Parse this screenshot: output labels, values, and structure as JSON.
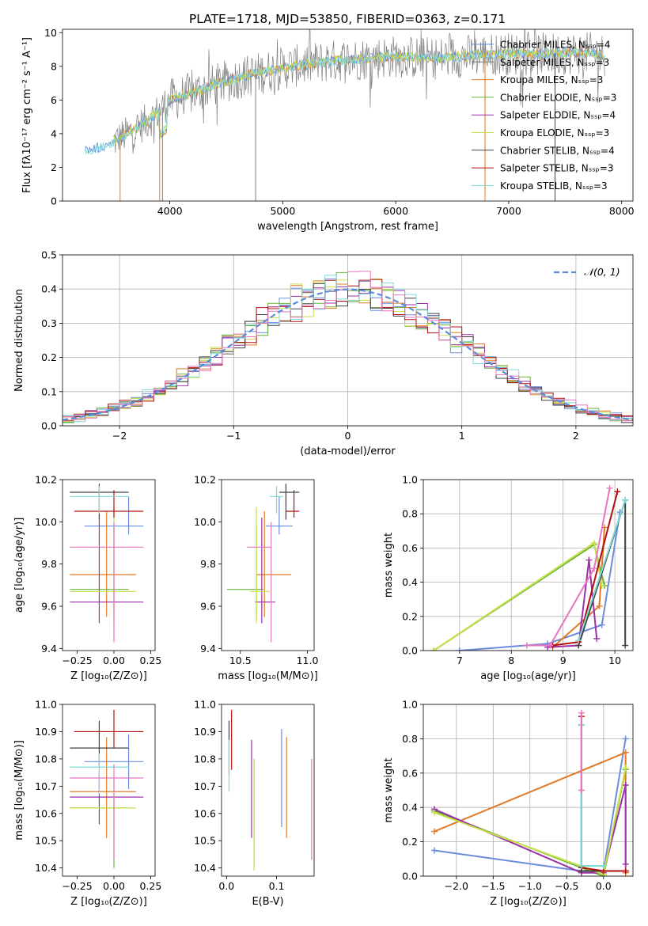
{
  "figure": {
    "title": "PLATE=1718, MJD=53850, FIBERID=0363, z=0.171"
  },
  "colors": {
    "Chabrier MILES": "#6a8ddc",
    "Salpeter MILES": "#ff8c1a",
    "Kroupa MILES": "#e07a28",
    "Chabrier ELODIE": "#68b23b",
    "Salpeter ELODIE": "#9b30a8",
    "Kroupa ELODIE": "#c8e04a",
    "Chabrier STELIB": "#404040",
    "Salpeter STELIB": "#b01010",
    "Kroupa STELIB": "#80d8d8",
    "Chabrier MILES spectrum": "#6a8ddc",
    "Salpeter MILES spectrum": "#e07a28",
    "Kroupa MILES spectrum": "#e07a28",
    "Salpeter MILES spec": "#888888",
    "data": "#808080",
    "pink": "#e874c0",
    "normal": "#5b8bdb"
  },
  "chart_data": [
    {
      "id": "spectrum",
      "type": "line",
      "title": "PLATE=1718, MJD=53850, FIBERID=0363, z=0.171",
      "xlabel": "wavelength [Angstrom, rest frame]",
      "ylabel": "Flux [fλ10⁻¹⁷ erg cm⁻² s⁻¹ A⁻¹]",
      "xlim": [
        3050,
        8100
      ],
      "ylim": [
        0,
        10.2
      ],
      "xticks": [
        4000,
        5000,
        6000,
        7000,
        8000
      ],
      "yticks": [
        0,
        2,
        4,
        6,
        8,
        10
      ],
      "legend_position": "top-right",
      "legend": [
        {
          "label": "Chabrier MILES, Nₛₛₚ=4",
          "color": "#6a8ddc"
        },
        {
          "label": "Salpeter MILES, Nₛₛₚ=3",
          "color": "#808080"
        },
        {
          "label": "Kroupa MILES, Nₛₛₚ=3",
          "color": "#e07a28"
        },
        {
          "label": "Chabrier ELODIE, Nₛₛₚ=3",
          "color": "#68b23b"
        },
        {
          "label": "Salpeter ELODIE, Nₛₛₚ=4",
          "color": "#9b30a8"
        },
        {
          "label": "Kroupa ELODIE, Nₛₛₚ=3",
          "color": "#c8e04a"
        },
        {
          "label": "Chabrier STELIB, Nₛₛₚ=4",
          "color": "#404040"
        },
        {
          "label": "Salpeter STELIB, Nₛₛₚ=3",
          "color": "#b01010"
        },
        {
          "label": "Kroupa STELIB, Nₛₛₚ=3",
          "color": "#80d8d8"
        }
      ],
      "continuum": {
        "x": [
          3250,
          3400,
          3550,
          3700,
          3850,
          4000,
          4200,
          4400,
          4600,
          4800,
          5000,
          5200,
          5400,
          5600,
          5800,
          6000,
          6200,
          6400,
          6600,
          6800,
          7000,
          7200,
          7400,
          7600,
          7850
        ],
        "y": [
          3.0,
          3.2,
          3.7,
          4.3,
          5.0,
          6.0,
          6.4,
          6.9,
          7.3,
          7.6,
          7.9,
          8.1,
          8.3,
          8.4,
          8.5,
          8.6,
          8.5,
          8.5,
          8.6,
          8.7,
          8.75,
          8.7,
          8.75,
          8.8,
          8.7
        ]
      }
    },
    {
      "id": "residuals",
      "type": "histogram",
      "xlabel": "(data-model)/error",
      "ylabel": "Normed distribution",
      "xlim": [
        -2.5,
        2.5
      ],
      "ylim": [
        0,
        0.5
      ],
      "xticks": [
        -2,
        -1,
        0,
        1,
        2
      ],
      "yticks": [
        0.0,
        0.1,
        0.2,
        0.3,
        0.4,
        0.5
      ],
      "legend_position": "top-right",
      "legend": [
        {
          "label": "𝒩(0, 1)",
          "color": "#5b8bdb"
        }
      ]
    },
    {
      "id": "age-vs-Z",
      "type": "errorbar",
      "xlabel": "Z [log₁₀(Z/Z⊙)]",
      "ylabel": "age  [log₁₀(age/yr)]",
      "xlim": [
        -0.35,
        0.28
      ],
      "ylim": [
        9.39,
        10.2
      ],
      "xticks": [
        -0.25,
        0.0,
        0.25
      ],
      "yticks": [
        9.4,
        9.6,
        9.8,
        10.0,
        10.2
      ],
      "points": [
        {
          "x": 0.1,
          "xerr": [
            0.3,
            0.1
          ],
          "y": 9.98,
          "yerr": [
            0.04,
            0.14
          ],
          "color": "#6a8ddc"
        },
        {
          "x": -0.05,
          "xerr": [
            0.25,
            0.2
          ],
          "y": 9.75,
          "yerr": [
            0.2,
            0.3
          ],
          "color": "#e07a28"
        },
        {
          "x": 0.0,
          "xerr": [
            0.3,
            0.1
          ],
          "y": 9.68,
          "yerr": [
            0.14,
            0.3
          ],
          "color": "#68b23b"
        },
        {
          "x": -0.1,
          "xerr": [
            0.2,
            0.3
          ],
          "y": 9.62,
          "yerr": [
            0.1,
            0.4
          ],
          "color": "#9b30a8"
        },
        {
          "x": 0.0,
          "xerr": [
            0.3,
            0.15
          ],
          "y": 9.67,
          "yerr": [
            0.15,
            0.4
          ],
          "color": "#c8e04a"
        },
        {
          "x": -0.1,
          "xerr": [
            0.2,
            0.2
          ],
          "y": 10.14,
          "yerr": [
            0.13,
            0.04
          ],
          "color": "#404040"
        },
        {
          "x": 0.0,
          "xerr": [
            0.27,
            0.2
          ],
          "y": 10.05,
          "yerr": [
            0.03,
            0.1
          ],
          "color": "#b01010"
        },
        {
          "x": -0.1,
          "xerr": [
            0.2,
            0.2
          ],
          "y": 10.12,
          "yerr": [
            0.08,
            0.05
          ],
          "color": "#80d8d8"
        },
        {
          "x": 0.0,
          "xerr": [
            0.3,
            0.2
          ],
          "y": 9.88,
          "yerr": [
            0.45,
            0.12
          ],
          "color": "#e874c0"
        }
      ]
    },
    {
      "id": "age-vs-mass",
      "type": "errorbar",
      "xlabel": "mass [log₁₀(M/M⊙)]",
      "ylabel": "",
      "xlim": [
        10.36,
        11.05
      ],
      "ylim": [
        9.39,
        10.2
      ],
      "xticks": [
        10.5,
        11.0
      ],
      "yticks": [
        9.4,
        9.6,
        9.8,
        10.0,
        10.2
      ],
      "points": [
        {
          "x": 10.79,
          "xerr": [
            0.1,
            0.1
          ],
          "y": 9.98,
          "yerr": [
            0.04,
            0.14
          ],
          "color": "#6a8ddc"
        },
        {
          "x": 10.68,
          "xerr": [
            0.06,
            0.2
          ],
          "y": 9.75,
          "yerr": [
            0.2,
            0.3
          ],
          "color": "#e07a28"
        },
        {
          "x": 10.62,
          "xerr": [
            0.22,
            0.05
          ],
          "y": 9.68,
          "yerr": [
            0.14,
            0.3
          ],
          "color": "#68b23b"
        },
        {
          "x": 10.66,
          "xerr": [
            0.05,
            0.1
          ],
          "y": 9.62,
          "yerr": [
            0.1,
            0.4
          ],
          "color": "#9b30a8"
        },
        {
          "x": 10.62,
          "xerr": [
            0.05,
            0.1
          ],
          "y": 9.67,
          "yerr": [
            0.15,
            0.4
          ],
          "color": "#c8e04a"
        },
        {
          "x": 10.84,
          "xerr": [
            0.05,
            0.1
          ],
          "y": 10.14,
          "yerr": [
            0.13,
            0.04
          ],
          "color": "#404040"
        },
        {
          "x": 10.9,
          "xerr": [
            0.06,
            0.04
          ],
          "y": 10.05,
          "yerr": [
            0.03,
            0.1
          ],
          "color": "#b01010"
        },
        {
          "x": 10.77,
          "xerr": [
            0.05,
            0.05
          ],
          "y": 10.12,
          "yerr": [
            0.08,
            0.05
          ],
          "color": "#80d8d8"
        },
        {
          "x": 10.73,
          "xerr": [
            0.18,
            0.0
          ],
          "y": 9.88,
          "yerr": [
            0.45,
            0.12
          ],
          "color": "#e874c0"
        }
      ]
    },
    {
      "id": "weight-vs-age",
      "type": "line",
      "xlabel": "age  [log₁₀(age/yr)]",
      "ylabel": "mass weight",
      "xlim": [
        6.3,
        10.35
      ],
      "ylim": [
        0,
        1
      ],
      "xticks": [
        7,
        8,
        9,
        10
      ],
      "yticks": [
        0.0,
        0.2,
        0.4,
        0.6,
        0.8,
        1.0
      ],
      "series": [
        {
          "color": "#6a8ddc",
          "x": [
            7.0,
            8.7,
            9.75,
            10.1
          ],
          "y": [
            0.0,
            0.04,
            0.15,
            0.81
          ]
        },
        {
          "color": "#e07a28",
          "x": [
            8.8,
            9.7,
            9.8
          ],
          "y": [
            0.02,
            0.26,
            0.72
          ]
        },
        {
          "color": "#68b23b",
          "x": [
            6.5,
            9.6,
            9.8
          ],
          "y": [
            0.0,
            0.62,
            0.38
          ]
        },
        {
          "color": "#9b30a8",
          "x": [
            8.7,
            9.3,
            9.5,
            9.65
          ],
          "y": [
            0.02,
            0.03,
            0.53,
            0.07
          ]
        },
        {
          "color": "#c8e04a",
          "x": [
            6.5,
            9.6,
            9.75
          ],
          "y": [
            0.0,
            0.63,
            0.38
          ]
        },
        {
          "color": "#404040",
          "x": [
            9.3,
            10.2,
            10.2
          ],
          "y": [
            0.03,
            0.88,
            0.03
          ]
        },
        {
          "color": "#b01010",
          "x": [
            8.8,
            9.3,
            10.05
          ],
          "y": [
            0.03,
            0.05,
            0.93
          ]
        },
        {
          "color": "#80d8d8",
          "x": [
            9.3,
            10.2
          ],
          "y": [
            0.06,
            0.88
          ]
        },
        {
          "color": "#e874c0",
          "x": [
            8.3,
            8.75,
            9.6,
            9.9
          ],
          "y": [
            0.03,
            0.03,
            0.48,
            0.95
          ]
        }
      ]
    },
    {
      "id": "mass-vs-Z",
      "type": "errorbar",
      "xlabel": "Z [log₁₀(Z/Z⊙)]",
      "ylabel": "mass [log₁₀(M/M⊙)]",
      "xlim": [
        -0.35,
        0.28
      ],
      "ylim": [
        10.37,
        11.0
      ],
      "xticks": [
        -0.25,
        0.0,
        0.25
      ],
      "yticks": [
        10.4,
        10.5,
        10.6,
        10.7,
        10.8,
        10.9,
        11.0
      ],
      "points": [
        {
          "x": 0.1,
          "xerr": [
            0.3,
            0.1
          ],
          "y": 10.79,
          "yerr": [
            0.1,
            0.1
          ],
          "color": "#6a8ddc"
        },
        {
          "x": -0.05,
          "xerr": [
            0.25,
            0.2
          ],
          "y": 10.68,
          "yerr": [
            0.17,
            0.2
          ],
          "color": "#e07a28"
        },
        {
          "x": 0.0,
          "xerr": [
            0.3,
            0.1
          ],
          "y": 10.62,
          "yerr": [
            0.22,
            0.05
          ],
          "color": "#68b23b"
        },
        {
          "x": -0.1,
          "xerr": [
            0.2,
            0.3
          ],
          "y": 10.66,
          "yerr": [
            0.1,
            0.1
          ],
          "color": "#9b30a8"
        },
        {
          "x": 0.0,
          "xerr": [
            0.3,
            0.15
          ],
          "y": 10.62,
          "yerr": [
            0.1,
            0.1
          ],
          "color": "#c8e04a"
        },
        {
          "x": -0.1,
          "xerr": [
            0.2,
            0.2
          ],
          "y": 10.84,
          "yerr": [
            0.07,
            0.1
          ],
          "color": "#404040"
        },
        {
          "x": 0.0,
          "xerr": [
            0.27,
            0.2
          ],
          "y": 10.9,
          "yerr": [
            0.06,
            0.08
          ],
          "color": "#b01010"
        },
        {
          "x": -0.1,
          "xerr": [
            0.2,
            0.2
          ],
          "y": 10.77,
          "yerr": [
            0.1,
            0.05
          ],
          "color": "#80d8d8"
        },
        {
          "x": 0.0,
          "xerr": [
            0.3,
            0.2
          ],
          "y": 10.73,
          "yerr": [
            0.3,
            0.05
          ],
          "color": "#e874c0"
        }
      ]
    },
    {
      "id": "mass-vs-EBV",
      "type": "errorbar",
      "xlabel": "E(B-V)",
      "ylabel": "",
      "xlim": [
        -0.01,
        0.175
      ],
      "ylim": [
        10.37,
        11.0
      ],
      "xticks": [
        0.0,
        0.1
      ],
      "yticks": [
        10.4,
        10.5,
        10.6,
        10.7,
        10.8,
        10.9,
        11.0
      ],
      "points": [
        {
          "x": 0.11,
          "y": 10.79,
          "yerr": [
            0.24,
            0.12
          ],
          "color": "#6a8ddc"
        },
        {
          "x": 0.12,
          "y": 10.68,
          "yerr": [
            0.17,
            0.2
          ],
          "color": "#e07a28"
        },
        {
          "x": 0.055,
          "y": 10.62,
          "yerr": [
            0.22,
            0.18
          ],
          "color": "#68b23b"
        },
        {
          "x": 0.05,
          "y": 10.66,
          "yerr": [
            0.15,
            0.21
          ],
          "color": "#9b30a8"
        },
        {
          "x": 0.055,
          "y": 10.62,
          "yerr": [
            0.23,
            0.18
          ],
          "color": "#c8e04a"
        },
        {
          "x": 0.005,
          "y": 10.84,
          "yerr": [
            0.1,
            0.1
          ],
          "color": "#404040"
        },
        {
          "x": 0.01,
          "y": 10.9,
          "yerr": [
            0.14,
            0.08
          ],
          "color": "#b01010"
        },
        {
          "x": 0.005,
          "y": 10.77,
          "yerr": [
            0.09,
            0.1
          ],
          "color": "#80d8d8"
        },
        {
          "x": 0.17,
          "y": 10.62,
          "yerr": [
            0.19,
            0.18
          ],
          "color": "#e874c0"
        }
      ]
    },
    {
      "id": "weight-vs-Z",
      "type": "line",
      "xlabel": "Z [log₁₀(Z/Z⊙)]",
      "ylabel": "mass weight",
      "xlim": [
        -2.45,
        0.4
      ],
      "ylim": [
        0,
        1
      ],
      "xticks": [
        -2.0,
        -1.5,
        -1.0,
        -0.5,
        0.0
      ],
      "yticks": [
        0.0,
        0.2,
        0.4,
        0.6,
        0.8,
        1.0
      ],
      "series": [
        {
          "color": "#6a8ddc",
          "x": [
            -2.3,
            -0.3,
            0.0,
            0.3
          ],
          "y": [
            0.15,
            0.03,
            0.03,
            0.8
          ]
        },
        {
          "color": "#e07a28",
          "x": [
            -2.3,
            0.3,
            0.3
          ],
          "y": [
            0.26,
            0.72,
            0.02
          ]
        },
        {
          "color": "#68b23b",
          "x": [
            -2.3,
            0.0,
            0.3
          ],
          "y": [
            0.38,
            0.0,
            0.62
          ]
        },
        {
          "color": "#9b30a8",
          "x": [
            -2.3,
            -0.3,
            0.0,
            0.3,
            0.3
          ],
          "y": [
            0.39,
            0.02,
            0.02,
            0.53,
            0.07
          ]
        },
        {
          "color": "#c8e04a",
          "x": [
            -2.3,
            0.0,
            0.3
          ],
          "y": [
            0.37,
            0.01,
            0.63
          ]
        },
        {
          "color": "#404040",
          "x": [
            -0.3,
            -0.3,
            0.3
          ],
          "y": [
            0.88,
            0.03,
            0.03
          ]
        },
        {
          "color": "#b01010",
          "x": [
            -0.3,
            -0.3,
            0.0,
            0.3
          ],
          "y": [
            0.93,
            0.05,
            0.03,
            0.03
          ]
        },
        {
          "color": "#80d8d8",
          "x": [
            -0.3,
            -0.3,
            0.0
          ],
          "y": [
            0.88,
            0.06,
            0.06
          ]
        },
        {
          "color": "#e874c0",
          "x": [
            -0.3,
            -0.3
          ],
          "y": [
            0.95,
            0.5
          ]
        }
      ]
    }
  ]
}
